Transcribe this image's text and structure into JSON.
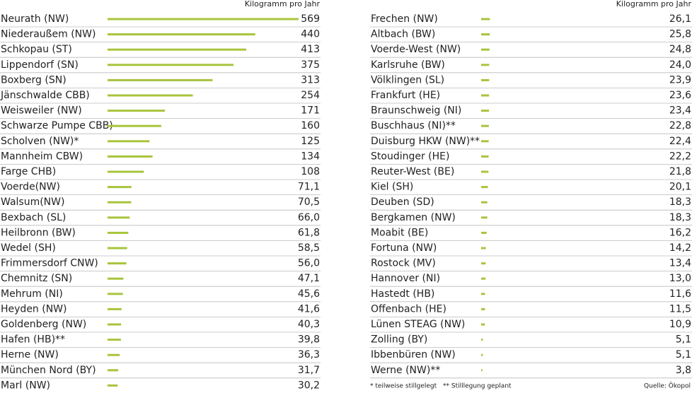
{
  "chart_data": [
    {
      "type": "bar",
      "orientation": "horizontal",
      "color": "#a8c43c",
      "unit_label": "Kilogramm pro Jahr",
      "categories": [
        "Neurath (NW)",
        "Niederaußem (NW)",
        "Schkopau (ST)",
        "Lippendorf (SN)",
        "Boxberg (SN)",
        "Jänschwalde CBB)",
        "Weisweiler (NW)",
        "Schwarze Pumpe CBB)",
        "Scholven (NW)*",
        "Mannheim CBW)",
        "Farge CHB)",
        "Voerde(NW)",
        "Walsum(NW)",
        "Bexbach (SL)",
        "Heilbronn (BW)",
        "Wedel (SH)",
        "Frimmersdorf CNW)",
        "Chemnitz (SN)",
        "Mehrum (NI)",
        "Heyden (NW)",
        "Goldenberg (NW)",
        "Hafen (HB)**",
        "Herne (NW)",
        "München Nord (BY)",
        "Marl (NW)"
      ],
      "values": [
        569,
        440,
        413,
        375,
        313,
        254,
        171,
        160,
        125,
        134,
        108,
        71.1,
        70.5,
        66.0,
        61.8,
        58.5,
        56.0,
        47.1,
        45.6,
        41.6,
        40.3,
        39.8,
        36.3,
        31.7,
        30.2
      ],
      "value_labels": [
        "569",
        "440",
        "413",
        "375",
        "313",
        "254",
        "171",
        "160",
        "125",
        "134",
        "108",
        "71,1",
        "70,5",
        "66,0",
        "61,8",
        "58,5",
        "56,0",
        "47,1",
        "45,6",
        "41,6",
        "40,3",
        "39,8",
        "36,3",
        "31,7",
        "30,2"
      ]
    },
    {
      "type": "bar",
      "orientation": "horizontal",
      "color": "#a8c43c",
      "unit_label": "Kilogramm pro Jahr",
      "categories": [
        "Frechen (NW)",
        "Altbach (BW)",
        "Voerde-West (NW)",
        "Karlsruhe (BW)",
        "Völklingen (SL)",
        "Frankfurt (HE)",
        "Braunschweig (NI)",
        "Buschhaus (NI)**",
        "Duisburg HKW (NW)**",
        "Stoudinger (HE)",
        "Reuter-West (BE)",
        "Kiel (SH)",
        "Deuben (SD)",
        "Bergkamen (NW)",
        "Moabit (BE)",
        "Fortuna (NW)",
        "Rostock (MV)",
        "Hannover (NI)",
        "Hastedt (HB)",
        "Offenbach (HE)",
        "Lünen STEAG (NW)",
        "Zolling (BY)",
        "Ibbenbüren (NW)",
        "Werne (NW)**"
      ],
      "values": [
        26.1,
        25.8,
        24.8,
        24.0,
        23.9,
        23.6,
        23.4,
        22.8,
        22.4,
        22.2,
        21.8,
        20.1,
        18.3,
        18.3,
        16.2,
        14.2,
        13.4,
        13.0,
        11.6,
        11.5,
        10.9,
        5.1,
        5.1,
        3.8
      ],
      "value_labels": [
        "26,1",
        "25,8",
        "24,8",
        "24,0",
        "23,9",
        "23,6",
        "23,4",
        "22,8",
        "22,4",
        "22,2",
        "21,8",
        "20,1",
        "18,3",
        "18,3",
        "16,2",
        "14,2",
        "13,4",
        "13,0",
        "11,6",
        "11,5",
        "10,9",
        "5,1",
        "5,1",
        "3,8"
      ]
    }
  ],
  "notes": [
    "* teilweise stillgelegt",
    "** Stilllegung geplant"
  ],
  "source": "Quelle: Ökopol"
}
